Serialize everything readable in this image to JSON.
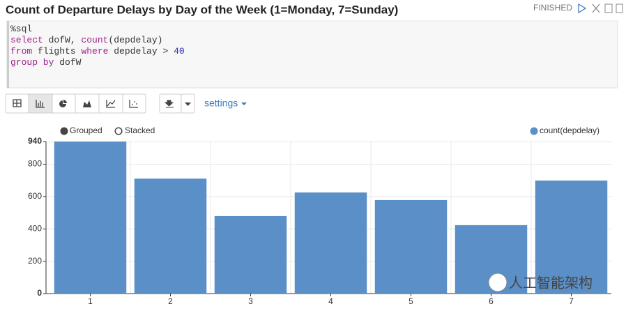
{
  "header": {
    "title": "Count of Departure Delays by Day of the Week (1=Monday, 7=Sunday)",
    "status": "FINISHED"
  },
  "code": {
    "lines": [
      [
        {
          "text": "%sql",
          "color": "#333333"
        }
      ],
      [
        {
          "text": "select",
          "color": "#a0208a"
        },
        {
          "text": " dofW, ",
          "color": "#333333"
        },
        {
          "text": "count",
          "color": "#a0208a"
        },
        {
          "text": "(depdelay)",
          "color": "#333333"
        }
      ],
      [
        {
          "text": "from",
          "color": "#a0208a"
        },
        {
          "text": " flights ",
          "color": "#333333"
        },
        {
          "text": "where",
          "color": "#a0208a"
        },
        {
          "text": " depdelay > ",
          "color": "#333333"
        },
        {
          "text": "40",
          "color": "#2a2ab0"
        }
      ],
      [
        {
          "text": "group by",
          "color": "#a0208a"
        },
        {
          "text": " dofW",
          "color": "#333333"
        }
      ]
    ]
  },
  "toolbar": {
    "settings": "settings"
  },
  "chart_options": {
    "grouped": "Grouped",
    "stacked": "Stacked"
  },
  "watermark": "人工智能架构",
  "chart_data": {
    "type": "bar",
    "categories": [
      "1",
      "2",
      "3",
      "4",
      "5",
      "6",
      "7"
    ],
    "series": [
      {
        "name": "count(depdelay)",
        "color": "#5b8fc7",
        "values": [
          940,
          711,
          479,
          625,
          578,
          423,
          699
        ]
      }
    ],
    "ylim": [
      0,
      940
    ],
    "yticks": [
      0,
      200,
      400,
      600,
      800,
      940
    ],
    "grid": true,
    "legend": "top-right"
  }
}
